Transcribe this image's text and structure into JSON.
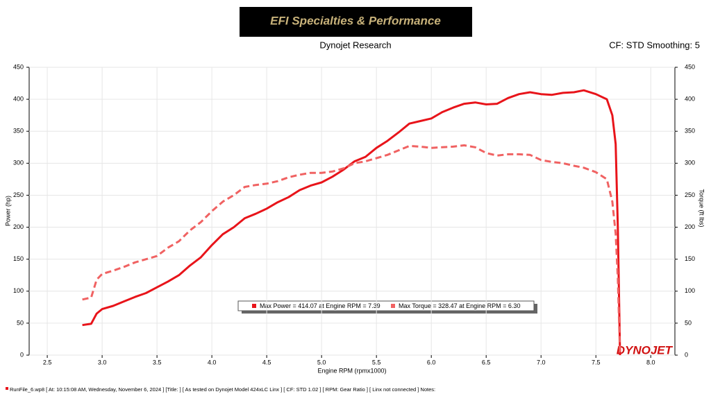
{
  "chart_data": {
    "type": "line",
    "title": "Dynojet Research",
    "subtitle": "CF: STD Smoothing: 5",
    "logo": "EFI Specialties & Performance",
    "brand": "DYNOJET",
    "footer": "RunFile_6.wp8 [ At: 10:15:08 AM, Wednesday, November 6, 2024 ] [Title: ]  [ As tested on Dynojet Model 424xLC Linx ] [ CF: STD 1.02 ] [ RPM: Gear Ratio ] [ Linx not connected ] Notes:",
    "xlabel": "Engine RPM (rpmx1000)",
    "ylabel": "Power (hp)",
    "y2label": "Torque (ft lbs)",
    "x": [
      2.82,
      2.9,
      2.95,
      3.0,
      3.1,
      3.2,
      3.3,
      3.4,
      3.5,
      3.6,
      3.7,
      3.8,
      3.9,
      4.0,
      4.1,
      4.2,
      4.3,
      4.4,
      4.5,
      4.6,
      4.7,
      4.8,
      4.9,
      5.0,
      5.1,
      5.2,
      5.3,
      5.4,
      5.5,
      5.6,
      5.7,
      5.8,
      5.9,
      6.0,
      6.1,
      6.2,
      6.3,
      6.4,
      6.5,
      6.6,
      6.7,
      6.8,
      6.9,
      7.0,
      7.1,
      7.2,
      7.3,
      7.39,
      7.5,
      7.6,
      7.65,
      7.68,
      7.7,
      7.72
    ],
    "series": [
      {
        "name": "Max Power = 414.07 at Engine RPM = 7.39",
        "color": "#e8141a",
        "dashed": false,
        "values": [
          47,
          49,
          65,
          72,
          77,
          84,
          91,
          97,
          106,
          115,
          125,
          140,
          153,
          172,
          189,
          200,
          214,
          221,
          229,
          239,
          247,
          258,
          265,
          270,
          279,
          290,
          303,
          310,
          324,
          335,
          348,
          362,
          366,
          370,
          380,
          387,
          393,
          395,
          392,
          393,
          402,
          408,
          411,
          408,
          407,
          410,
          411,
          414,
          408,
          400,
          375,
          330,
          200,
          0
        ]
      },
      {
        "name": "Max Torque = 328.47 at Engine RPM = 6.30",
        "color": "#f06262",
        "dashed": true,
        "axis": "y2",
        "values": [
          87,
          90,
          118,
          127,
          132,
          138,
          145,
          150,
          155,
          168,
          178,
          195,
          208,
          225,
          240,
          250,
          263,
          266,
          268,
          272,
          278,
          282,
          285,
          285,
          287,
          292,
          300,
          303,
          308,
          313,
          320,
          327,
          326,
          324,
          325,
          326,
          328,
          325,
          316,
          312,
          314,
          314,
          313,
          305,
          302,
          300,
          296,
          293,
          286,
          275,
          240,
          190,
          120,
          0
        ]
      }
    ],
    "xlim": [
      2.335,
      8.22
    ],
    "xticks": [
      2.5,
      {
        "value": 3,
        "label": "3.0"
      },
      3.5,
      {
        "value": 4,
        "label": "4.0"
      },
      4.5,
      {
        "value": 5,
        "label": "5.0"
      },
      5.5,
      {
        "value": 6,
        "label": "6.0"
      },
      6.5,
      {
        "value": 7,
        "label": "7.0"
      },
      7.5,
      {
        "value": 8,
        "label": "8.0"
      }
    ],
    "ylim": [
      0,
      450
    ],
    "yticks": [
      0,
      50,
      100,
      150,
      200,
      250,
      300,
      350,
      400,
      450
    ],
    "y2lim": [
      0,
      450
    ],
    "y2ticks": [
      0,
      50,
      100,
      150,
      200,
      250,
      300,
      350,
      400,
      450
    ],
    "grid": true
  }
}
